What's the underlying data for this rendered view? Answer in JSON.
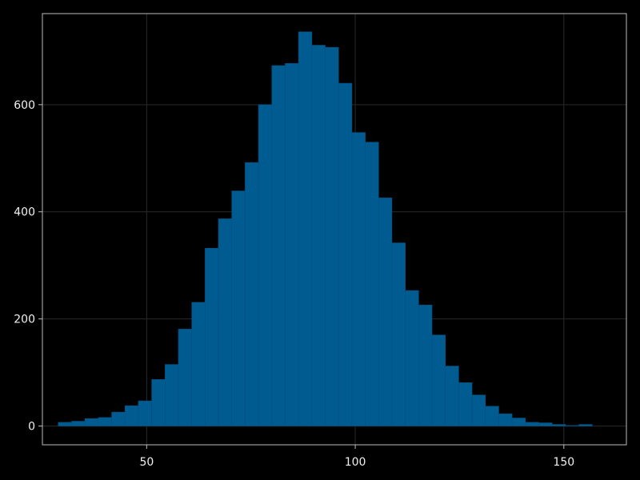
{
  "chart_data": {
    "type": "bar",
    "title": "",
    "xlabel": "",
    "ylabel": "",
    "bin_width": 3.2,
    "xlim": [
      25,
      165
    ],
    "ylim": [
      -35,
      770
    ],
    "x_ticks": [
      50,
      100,
      150
    ],
    "y_ticks": [
      0,
      200,
      400,
      600
    ],
    "grid": true,
    "colors": {
      "background": "#000000",
      "bar": "#005c90",
      "bar_edge": "#004f7d",
      "grid": "#2a2a2a",
      "axis": "#bdbdbd"
    },
    "bins": [
      {
        "x": 28.8,
        "count": 7
      },
      {
        "x": 32.0,
        "count": 9
      },
      {
        "x": 35.2,
        "count": 14
      },
      {
        "x": 38.4,
        "count": 16
      },
      {
        "x": 41.6,
        "count": 26
      },
      {
        "x": 44.8,
        "count": 38
      },
      {
        "x": 48.0,
        "count": 47
      },
      {
        "x": 51.2,
        "count": 87
      },
      {
        "x": 54.4,
        "count": 115
      },
      {
        "x": 57.6,
        "count": 181
      },
      {
        "x": 60.8,
        "count": 231
      },
      {
        "x": 64.0,
        "count": 332
      },
      {
        "x": 67.2,
        "count": 387
      },
      {
        "x": 70.4,
        "count": 439
      },
      {
        "x": 73.6,
        "count": 492
      },
      {
        "x": 76.8,
        "count": 600
      },
      {
        "x": 80.0,
        "count": 673
      },
      {
        "x": 83.2,
        "count": 677
      },
      {
        "x": 86.4,
        "count": 736
      },
      {
        "x": 89.6,
        "count": 711
      },
      {
        "x": 92.8,
        "count": 707
      },
      {
        "x": 96.0,
        "count": 640
      },
      {
        "x": 99.2,
        "count": 548
      },
      {
        "x": 102.4,
        "count": 530
      },
      {
        "x": 105.6,
        "count": 426
      },
      {
        "x": 108.8,
        "count": 342
      },
      {
        "x": 112.0,
        "count": 253
      },
      {
        "x": 115.2,
        "count": 226
      },
      {
        "x": 118.4,
        "count": 170
      },
      {
        "x": 121.6,
        "count": 112
      },
      {
        "x": 124.8,
        "count": 81
      },
      {
        "x": 128.0,
        "count": 58
      },
      {
        "x": 131.2,
        "count": 37
      },
      {
        "x": 134.4,
        "count": 23
      },
      {
        "x": 137.6,
        "count": 15
      },
      {
        "x": 140.8,
        "count": 7
      },
      {
        "x": 144.0,
        "count": 6
      },
      {
        "x": 147.2,
        "count": 3
      },
      {
        "x": 150.4,
        "count": 1
      },
      {
        "x": 153.6,
        "count": 3
      }
    ]
  }
}
